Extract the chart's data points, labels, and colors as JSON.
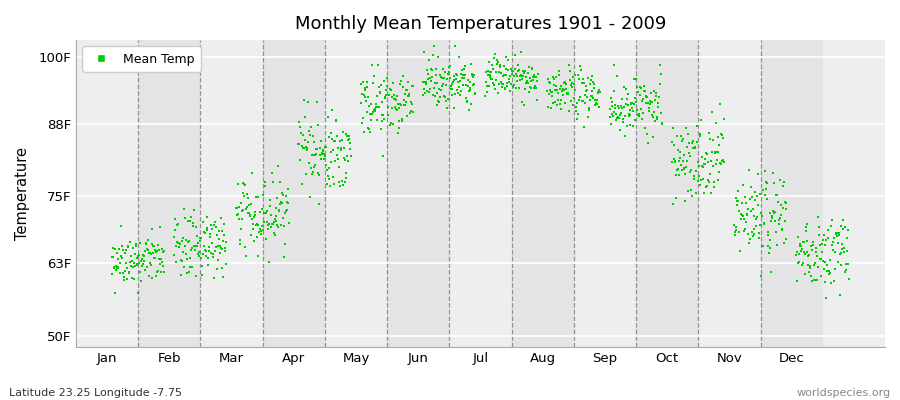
{
  "title": "Monthly Mean Temperatures 1901 - 2009",
  "ylabel": "Temperature",
  "xlabel_bottom_left": "Latitude 23.25 Longitude -7.75",
  "xlabel_bottom_right": "worldspecies.org",
  "ytick_labels": [
    "50F",
    "63F",
    "75F",
    "88F",
    "100F"
  ],
  "ytick_values": [
    50,
    63,
    75,
    88,
    100
  ],
  "ylim": [
    48,
    103
  ],
  "xlim": [
    0,
    13
  ],
  "xtick_positions": [
    1,
    2,
    3,
    4,
    5,
    6,
    7,
    8,
    9,
    10,
    11,
    12
  ],
  "xtick_labels": [
    "Jan",
    "Feb",
    "Mar",
    "Apr",
    "May",
    "Jun",
    "Jul",
    "Aug",
    "Sep",
    "Oct",
    "Nov",
    "Dec"
  ],
  "vlines": [
    1.5,
    2.5,
    3.5,
    4.5,
    5.5,
    6.5,
    7.5,
    8.5,
    9.5,
    10.5,
    11.5
  ],
  "dot_color": "#00CC00",
  "background_color": "#EEEEEE",
  "legend_label": "Mean Temp",
  "n_years": 109,
  "monthly_means": [
    63.5,
    66.0,
    72.0,
    83.0,
    92.0,
    95.5,
    96.5,
    93.5,
    91.0,
    82.0,
    71.5,
    65.0
  ],
  "monthly_stds": [
    2.2,
    2.8,
    3.5,
    3.5,
    2.8,
    2.2,
    1.8,
    2.2,
    2.8,
    3.5,
    3.8,
    3.2
  ]
}
